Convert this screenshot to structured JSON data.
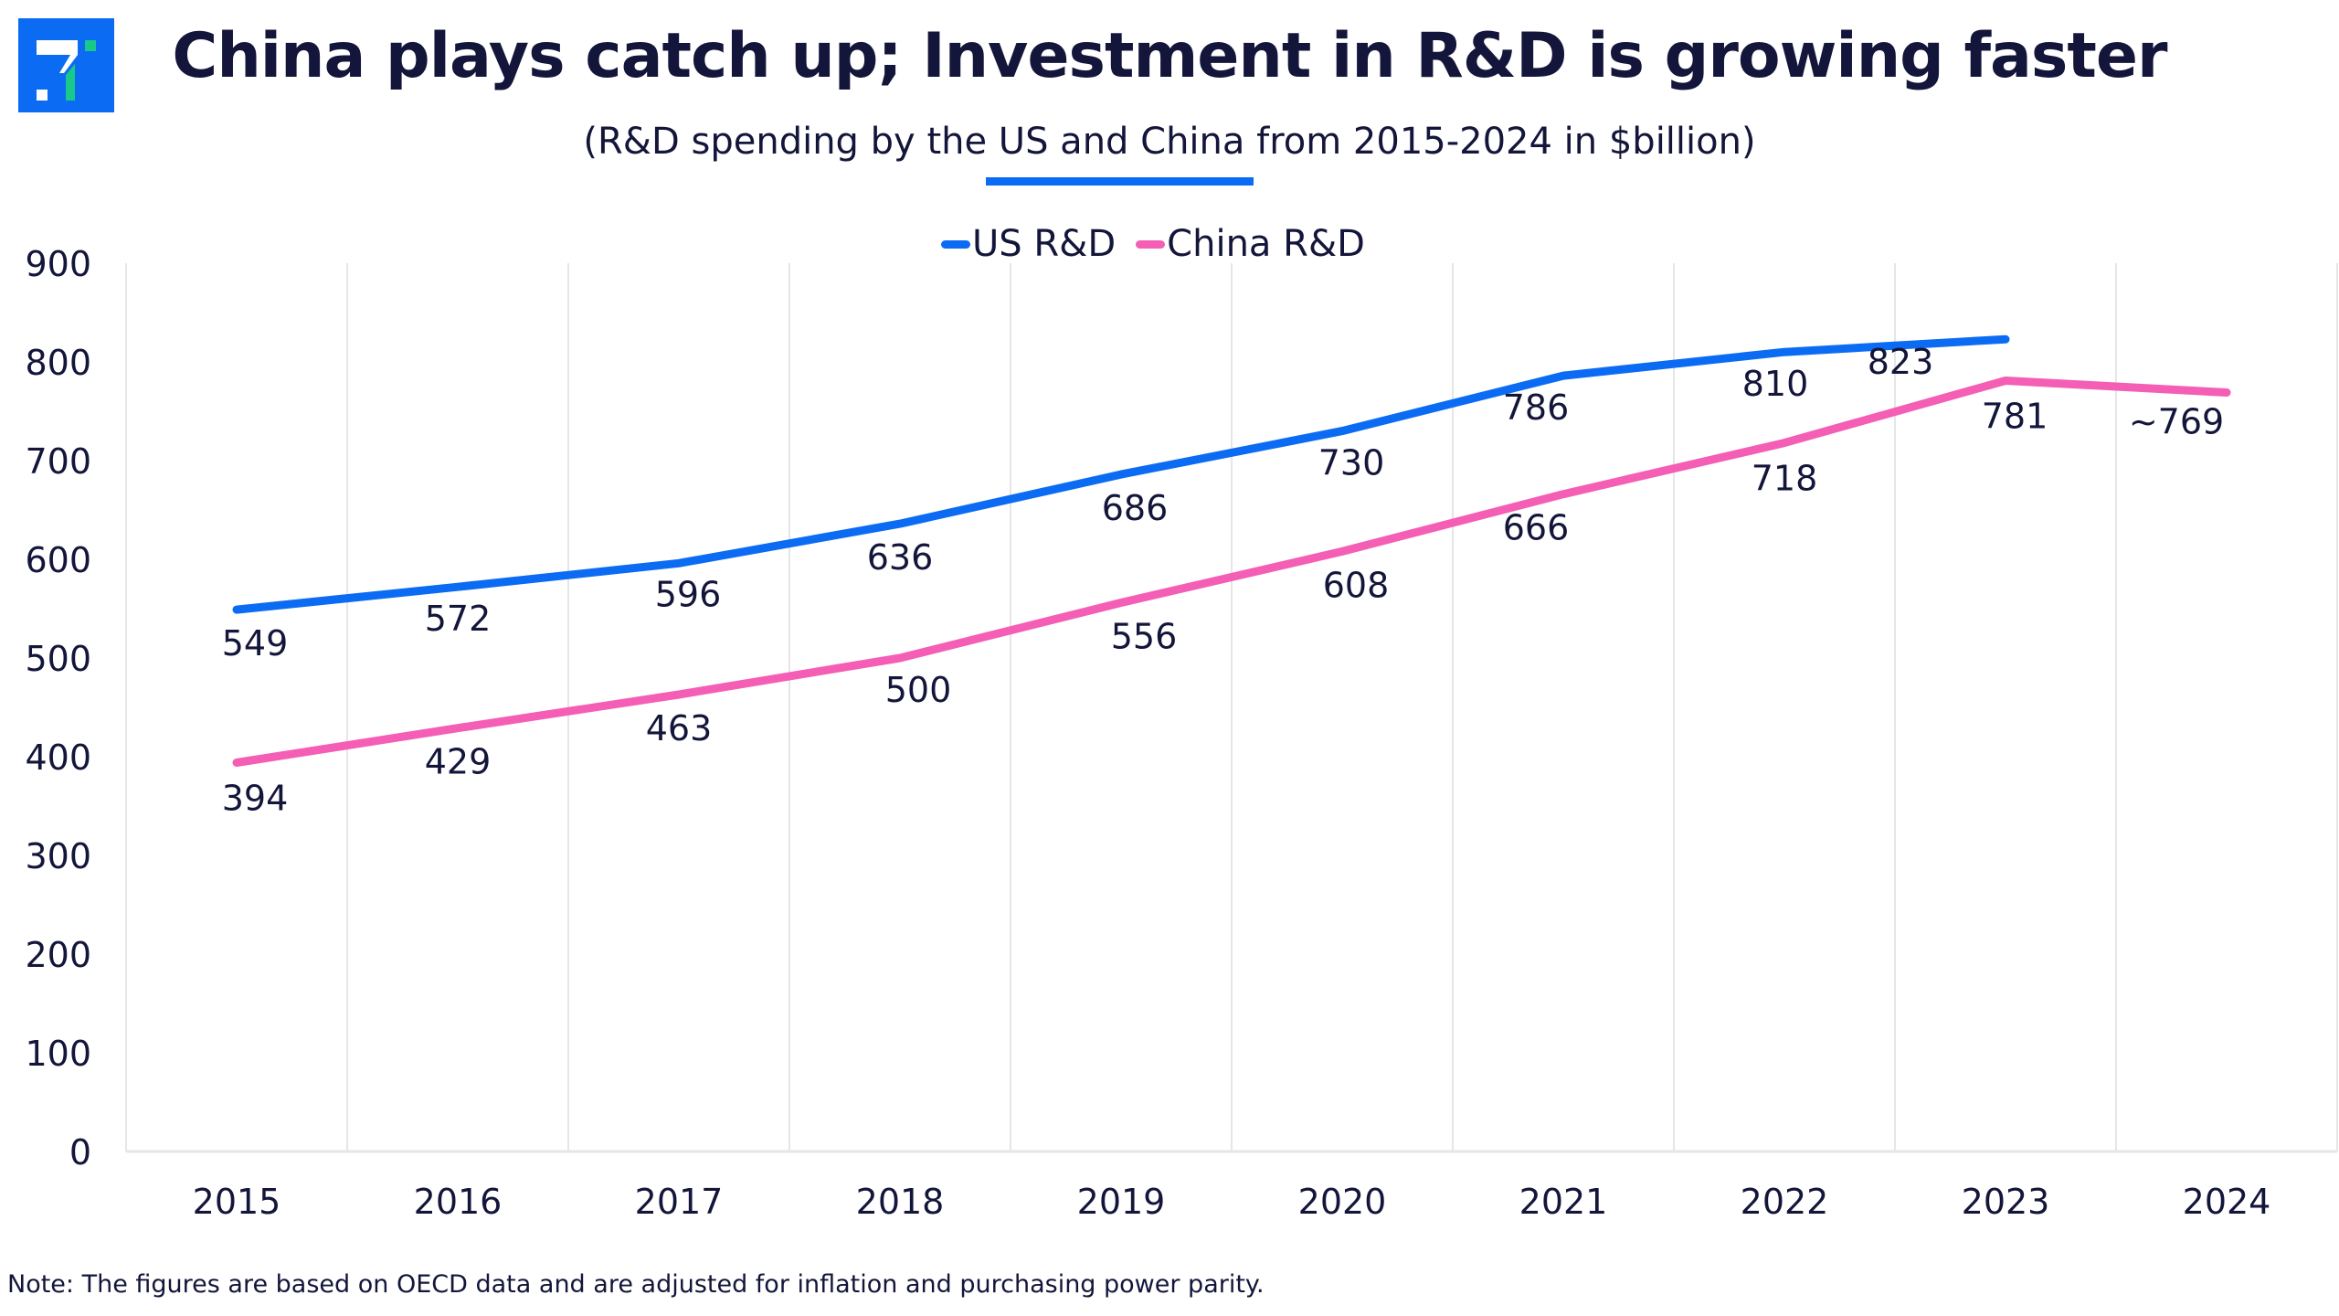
{
  "header": {
    "logo_icon": "brand-logo-icon",
    "title": "China plays catch up; Investment in R&D is growing faster",
    "subtitle": "(R&D spending by the US and China from 2015-2024 in $billion)"
  },
  "footer": {
    "note": "Note: The figures are based on OECD data and are adjusted for inflation and purchasing power parity."
  },
  "colors": {
    "brand_blue": "#0b6cf3",
    "brand_green": "#18c98a",
    "us": "#0b6cf3",
    "china": "#f45eb4",
    "text": "#13163a",
    "grid": "#e6e6e6"
  },
  "chart_data": {
    "type": "line",
    "title": "China plays catch up; Investment in R&D is growing faster",
    "subtitle": "(R&D spending by the US and China from 2015-2024 in $billion)",
    "xlabel": "",
    "ylabel": "",
    "categories": [
      "2015",
      "2016",
      "2017",
      "2018",
      "2019",
      "2020",
      "2021",
      "2022",
      "2023",
      "2024"
    ],
    "ylim": [
      0,
      900
    ],
    "yticks": [
      0,
      100,
      200,
      300,
      400,
      500,
      600,
      700,
      800,
      900
    ],
    "grid": "vertical",
    "legend": "top-center",
    "series": [
      {
        "name": "US R&D",
        "color": "#0b6cf3",
        "values": [
          549,
          572,
          596,
          636,
          686,
          730,
          786,
          810,
          823,
          null
        ],
        "labels": [
          "549",
          "572",
          "596",
          "636",
          "686",
          "730",
          "786",
          "810",
          "823",
          ""
        ]
      },
      {
        "name": "China R&D",
        "color": "#f45eb4",
        "values": [
          394,
          429,
          463,
          500,
          556,
          608,
          666,
          718,
          781,
          769
        ],
        "labels": [
          "394",
          "429",
          "463",
          "500",
          "556",
          "608",
          "666",
          "718",
          "781",
          "~769"
        ]
      }
    ]
  }
}
